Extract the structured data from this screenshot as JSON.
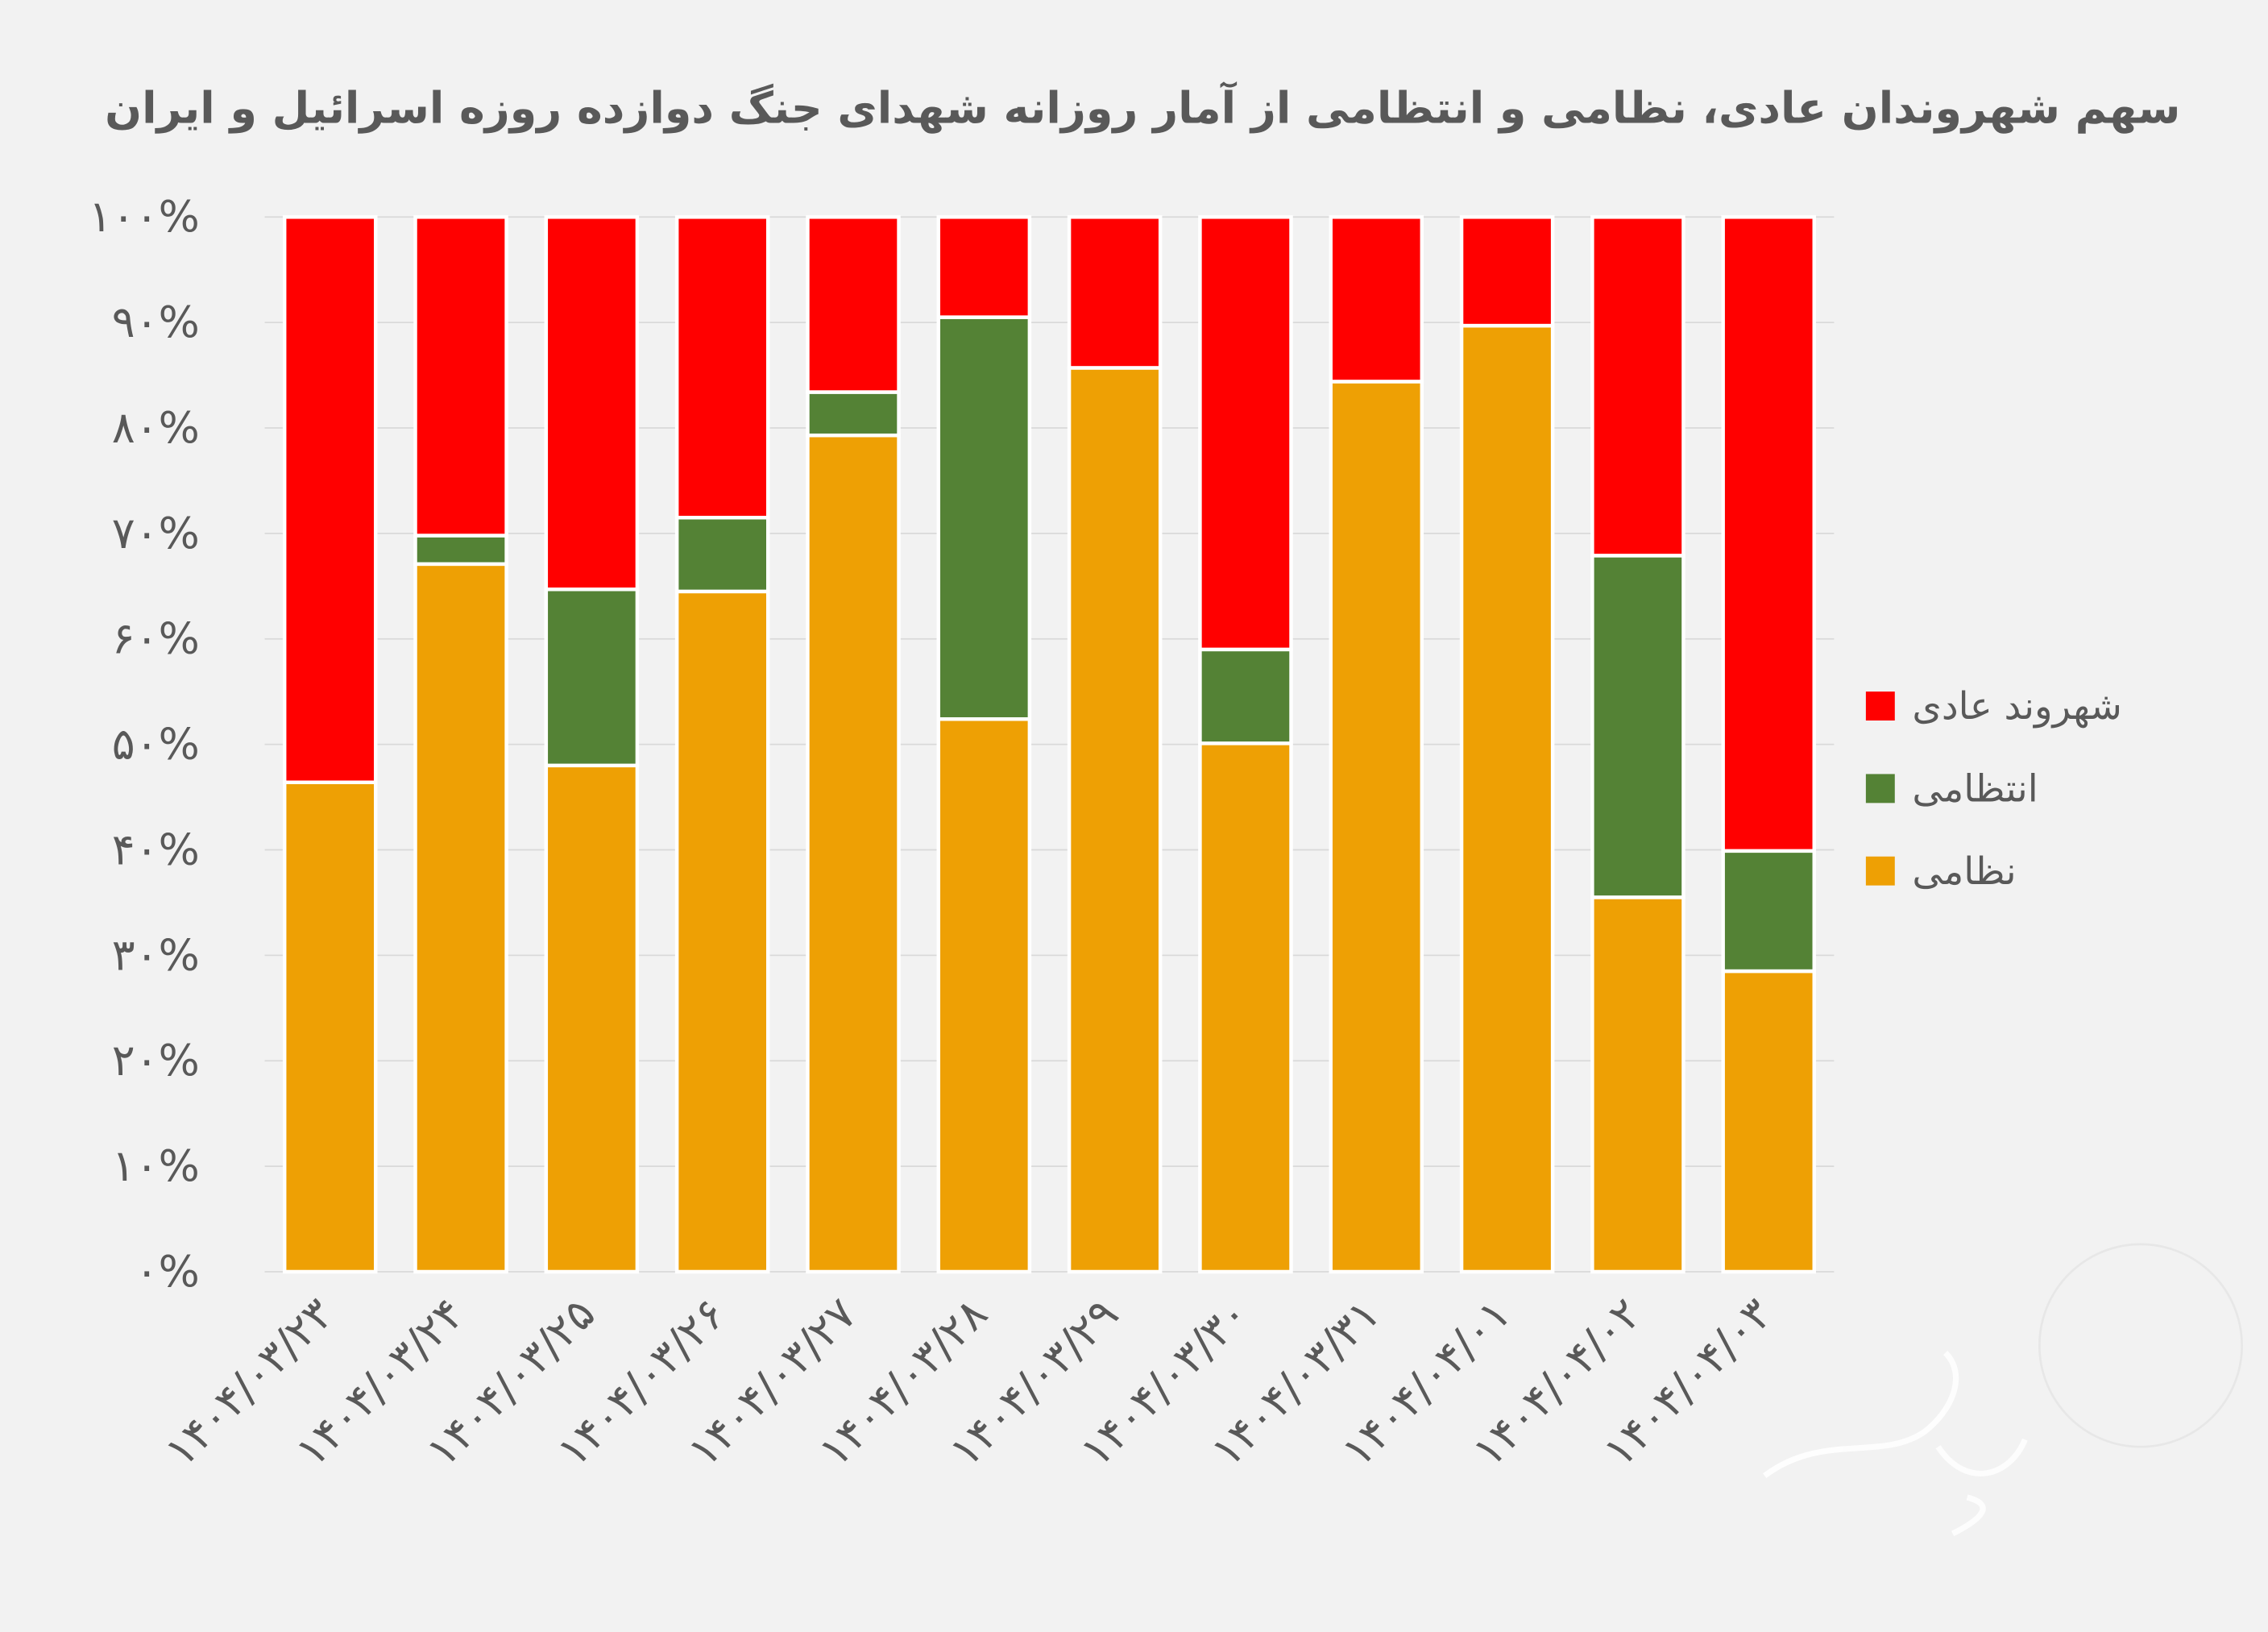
{
  "chart_data": {
    "type": "bar",
    "stacked": "percent",
    "title": "سهم شهروندان عادی، نظامی و انتظامی از آمار روزانه شهدای جنگ دوازده روزه اسرائیل و ایران",
    "xlabel": "",
    "ylabel": "",
    "ylim": [
      0,
      100
    ],
    "grid": true,
    "legend_position": "right",
    "y_ticks": [
      "۰%",
      "۱۰%",
      "۲۰%",
      "۳۰%",
      "۴۰%",
      "۵۰%",
      "۶۰%",
      "۷۰%",
      "۸۰%",
      "۹۰%",
      "۱۰۰%"
    ],
    "categories": [
      "۱۴۰۴/۰۳/۲۳",
      "۱۴۰۴/۰۳/۲۴",
      "۱۴۰۴/۰۳/۲۵",
      "۱۴۰۴/۰۳/۲۶",
      "۱۴۰۴/۰۳/۲۷",
      "۱۴۰۴/۰۳/۲۸",
      "۱۴۰۴/۰۳/۲۹",
      "۱۴۰۴/۰۳/۳۰",
      "۱۴۰۴/۰۳/۳۱",
      "۱۴۰۴/۰۴/۰۱",
      "۱۴۰۴/۰۴/۰۲",
      "۱۴۰۴/۰۴/۰۳"
    ],
    "series": [
      {
        "name": "نظامی",
        "color": "#EEA004",
        "values": [
          46.4,
          67.1,
          48.0,
          64.5,
          79.3,
          52.4,
          85.7,
          50.1,
          84.4,
          89.7,
          35.5,
          28.5
        ]
      },
      {
        "name": "انتظامی",
        "color": "#548235",
        "values": [
          0,
          2.7,
          16.7,
          7.0,
          4.1,
          38.1,
          0,
          8.9,
          0,
          0,
          32.4,
          11.4
        ]
      },
      {
        "name": "شهروند عادی",
        "color": "#FF0000",
        "values": [
          53.6,
          30.2,
          35.3,
          28.5,
          16.6,
          9.5,
          14.3,
          41.0,
          15.6,
          10.3,
          32.1,
          60.1
        ]
      }
    ],
    "legend_order": [
      "شهروند عادی",
      "انتظامی",
      "نظامی"
    ]
  }
}
